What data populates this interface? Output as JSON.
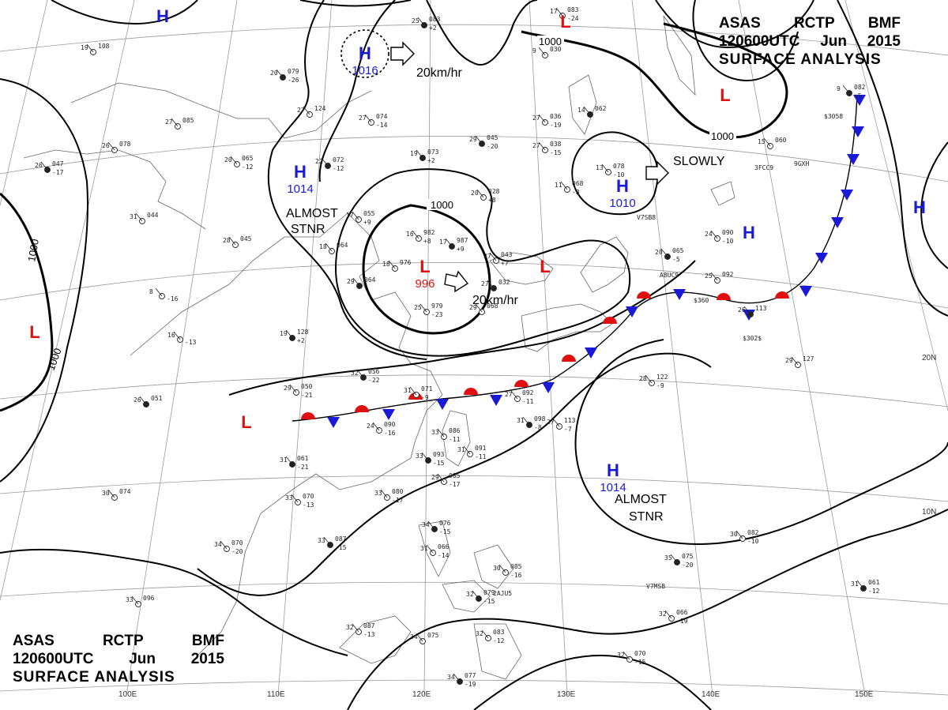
{
  "header": {
    "line1": [
      "ASAS",
      "RCTP",
      "BMF"
    ],
    "line2": [
      "120600UTC",
      "Jun",
      "2015"
    ],
    "line3": "SURFACE ANALYSIS"
  },
  "isobar_labels": [
    "1000",
    "1000",
    "1000",
    "1000",
    "1000"
  ],
  "longitude_ticks": [
    "100E",
    "110E",
    "120E",
    "130E",
    "140E",
    "150E"
  ],
  "latitude_ticks": [
    "20N",
    "10N"
  ],
  "pressure_centers": [
    {
      "type": "H",
      "value": "1016",
      "color": "#1a1ad6"
    },
    {
      "type": "H",
      "value": "1014",
      "color": "#1a1ad6"
    },
    {
      "type": "H",
      "value": "1010",
      "color": "#1a1ad6"
    },
    {
      "type": "H",
      "value": "1014",
      "color": "#1a1ad6"
    },
    {
      "type": "L",
      "value": "996",
      "color": "#e01010"
    },
    {
      "type": "H",
      "value": "",
      "color": "#1a1ad6"
    },
    {
      "type": "H",
      "value": "",
      "color": "#1a1ad6"
    },
    {
      "type": "H",
      "value": "",
      "color": "#1a1ad6"
    },
    {
      "type": "L",
      "value": "",
      "color": "#e01010"
    },
    {
      "type": "L",
      "value": "",
      "color": "#e01010"
    },
    {
      "type": "L",
      "value": "",
      "color": "#e01010"
    },
    {
      "type": "L",
      "value": "",
      "color": "#e01010"
    },
    {
      "type": "L",
      "value": "",
      "color": "#e01010"
    }
  ],
  "annotations": {
    "speed_1": "20km/hr",
    "speed_2": "20km/hr",
    "slowly": "SLOWLY",
    "stnr_1": [
      "ALMOST",
      "STNR"
    ],
    "stnr_2": [
      "ALMOST",
      "STNR"
    ]
  },
  "front": {
    "type": "stationary",
    "warm_color": "#e01010",
    "cold_color": "#1a1ad6"
  },
  "station_obs": [
    {
      "t": "25",
      "p": "083",
      "d": "+2"
    },
    {
      "t": "19",
      "p": "108",
      "d": ""
    },
    {
      "t": "27",
      "p": "085",
      "d": ""
    },
    {
      "t": "20",
      "p": "079",
      "d": "-26"
    },
    {
      "t": "27",
      "p": "124",
      "d": ""
    },
    {
      "t": "27",
      "p": "074",
      "d": "-14"
    },
    {
      "t": "29",
      "p": "045",
      "d": "-20"
    },
    {
      "t": "27",
      "p": "036",
      "d": "-19"
    },
    {
      "t": "27",
      "p": "038",
      "d": "-15"
    },
    {
      "t": "19",
      "p": "073",
      "d": "+2"
    },
    {
      "t": "20",
      "p": "028",
      "d": "+8"
    },
    {
      "t": "16",
      "p": "982",
      "d": "+8"
    },
    {
      "t": "17",
      "p": "987",
      "d": "+9"
    },
    {
      "t": "31",
      "p": "044",
      "d": ""
    },
    {
      "t": "28",
      "p": "045",
      "d": ""
    },
    {
      "t": "26",
      "p": "047",
      "d": "-17"
    },
    {
      "t": "26",
      "p": "078",
      "d": ""
    },
    {
      "t": "20",
      "p": "065",
      "d": "-12"
    },
    {
      "t": "22",
      "p": "072",
      "d": "-12"
    },
    {
      "t": "17",
      "p": "055",
      "d": "+9"
    },
    {
      "t": "18",
      "p": "064",
      "d": ""
    },
    {
      "t": "29",
      "p": "064",
      "d": ""
    },
    {
      "t": "18",
      "p": "976",
      "d": ""
    },
    {
      "t": "25",
      "p": "979",
      "d": "-23"
    },
    {
      "t": "19",
      "p": "128",
      "d": "+2"
    },
    {
      "t": "16",
      "p": "",
      "d": "-13"
    },
    {
      "t": "8",
      "p": "",
      "d": "-16"
    },
    {
      "t": "32",
      "p": "056",
      "d": "-22"
    },
    {
      "t": "29",
      "p": "050",
      "d": "-21"
    },
    {
      "t": "31",
      "p": "071",
      "d": "-9"
    },
    {
      "t": "26",
      "p": "051",
      "d": ""
    },
    {
      "t": "24",
      "p": "090",
      "d": "-16"
    },
    {
      "t": "33",
      "p": "086",
      "d": "-11"
    },
    {
      "t": "33",
      "p": "093",
      "d": "-15"
    },
    {
      "t": "31",
      "p": "091",
      "d": "-11"
    },
    {
      "t": "29",
      "p": "085",
      "d": "-17"
    },
    {
      "t": "31",
      "p": "098",
      "d": "-8"
    },
    {
      "t": "27",
      "p": "113",
      "d": "-7"
    },
    {
      "t": "33",
      "p": "080",
      "d": "-17"
    },
    {
      "t": "31",
      "p": "061",
      "d": "-21"
    },
    {
      "t": "33",
      "p": "070",
      "d": "-13"
    },
    {
      "t": "30",
      "p": "074",
      "d": ""
    },
    {
      "t": "33",
      "p": "087",
      "d": "-15"
    },
    {
      "t": "34",
      "p": "070",
      "d": "-20"
    },
    {
      "t": "33",
      "p": "096",
      "d": ""
    },
    {
      "t": "34",
      "p": "076",
      "d": "-15"
    },
    {
      "t": "31",
      "p": "066",
      "d": "-14"
    },
    {
      "t": "30",
      "p": "085",
      "d": "-16"
    },
    {
      "t": "32",
      "p": "079",
      "d": "-15"
    },
    {
      "t": "32",
      "p": "087",
      "d": "-13"
    },
    {
      "t": "34",
      "p": "075",
      "d": ""
    },
    {
      "t": "34",
      "p": "077",
      "d": "-19"
    },
    {
      "t": "32",
      "p": "083",
      "d": "-12"
    },
    {
      "t": "32",
      "p": "070",
      "d": "-15"
    },
    {
      "t": "35",
      "p": "075",
      "d": "-20"
    },
    {
      "t": "30",
      "p": "082",
      "d": "-10"
    },
    {
      "t": "32",
      "p": "066",
      "d": "-19"
    },
    {
      "t": "31",
      "p": "061",
      "d": "-12"
    },
    {
      "t": "28",
      "p": "122",
      "d": "-9"
    },
    {
      "t": "29",
      "p": "127",
      "d": ""
    },
    {
      "t": "20",
      "p": "065",
      "d": "-5"
    },
    {
      "t": "24",
      "p": "090",
      "d": "-10"
    },
    {
      "t": "25",
      "p": "092",
      "d": ""
    },
    {
      "t": "26",
      "p": "113",
      "d": ""
    },
    {
      "t": "13",
      "p": "078",
      "d": "-10"
    },
    {
      "t": "11",
      "p": "068",
      "d": "-8"
    },
    {
      "t": "14",
      "p": "062",
      "d": ""
    },
    {
      "t": "9",
      "p": "030",
      "d": ""
    },
    {
      "t": "15",
      "p": "060",
      "d": ""
    },
    {
      "t": "9",
      "p": "082",
      "d": "+5"
    },
    {
      "t": "17",
      "p": "083",
      "d": "-24"
    },
    {
      "t": "27",
      "p": "043",
      "d": "+7"
    },
    {
      "t": "27",
      "p": "032",
      "d": ""
    },
    {
      "t": "27",
      "p": "092",
      "d": "-11"
    },
    {
      "t": "29",
      "p": "068",
      "d": ""
    }
  ],
  "ship_calls": [
    "V7SB8",
    "A8UC9",
    "3FCC9",
    "9GXH",
    "$3058",
    "$302$",
    "$360",
    "V7MSB",
    "2AJU5"
  ]
}
